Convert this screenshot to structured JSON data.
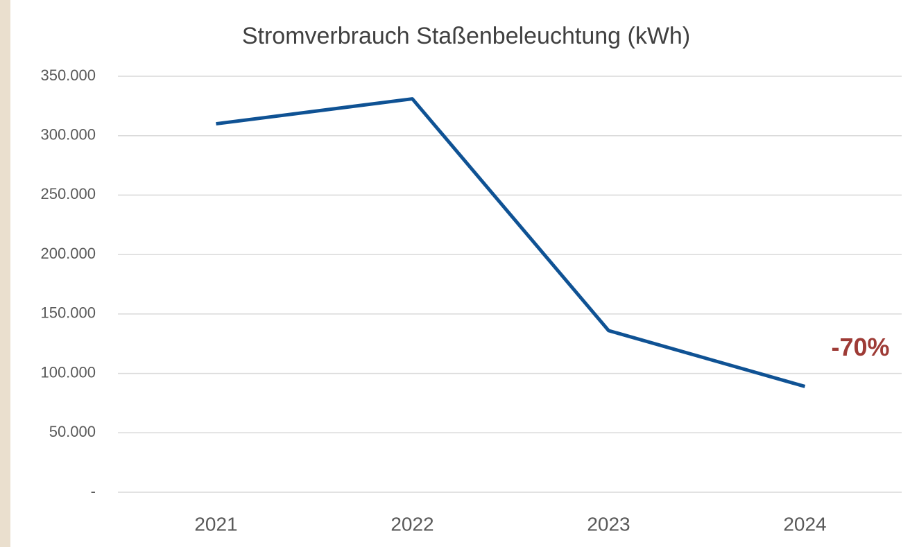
{
  "chart_data": {
    "type": "line",
    "title": "Stromverbrauch Staßenbeleuchtung (kWh)",
    "categories": [
      "2021",
      "2022",
      "2023",
      "2024"
    ],
    "values": [
      310000,
      331000,
      136000,
      89000
    ],
    "color": "#0f5294",
    "ylim": [
      0,
      350000
    ],
    "yticks": [
      {
        "value": 0,
        "label": "-"
      },
      {
        "value": 50000,
        "label": "50.000"
      },
      {
        "value": 100000,
        "label": "100.000"
      },
      {
        "value": 150000,
        "label": "150.000"
      },
      {
        "value": 200000,
        "label": "200.000"
      },
      {
        "value": 250000,
        "label": "250.000"
      },
      {
        "value": 300000,
        "label": "300.000"
      },
      {
        "value": 350000,
        "label": "350.000"
      }
    ],
    "grid": true,
    "annotation": {
      "text": "-70%",
      "color": "#9e3b36"
    }
  }
}
